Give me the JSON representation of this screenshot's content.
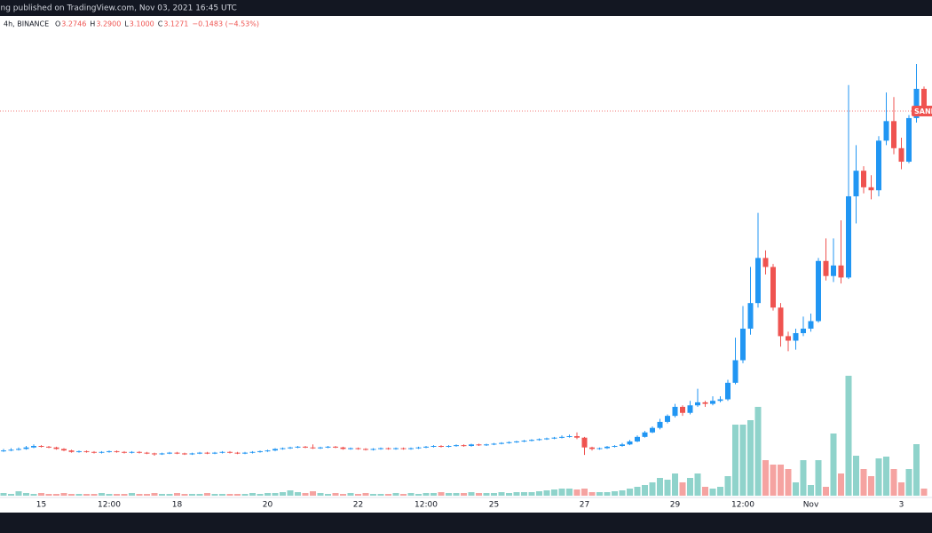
{
  "header": {
    "published": "ing published on TradingView.com, Nov 03, 2021 16:45 UTC",
    "interval": "4h, BINANCE",
    "items": [
      {
        "key": "O",
        "value": "3.2746"
      },
      {
        "key": "H",
        "value": "3.2900"
      },
      {
        "key": "L",
        "value": "3.1000"
      },
      {
        "key": "C",
        "value": "3.1271"
      }
    ],
    "change": "−0.1483 (−4.53%)"
  },
  "chart_data": {
    "type": "candlestick",
    "symbol": "SAND",
    "up_color": "#2196f3",
    "down_color": "#ef5350",
    "volume_up_color": "#8fd3cb",
    "volume_down_color": "#f5a3a1",
    "categories": [
      null,
      null,
      null,
      null,
      null,
      "15",
      null,
      null,
      null,
      null,
      null,
      null,
      null,
      null,
      "12:00",
      null,
      null,
      null,
      null,
      null,
      null,
      null,
      null,
      "18",
      null,
      null,
      null,
      null,
      null,
      null,
      null,
      null,
      null,
      null,
      null,
      "20",
      null,
      null,
      null,
      null,
      null,
      null,
      null,
      null,
      null,
      null,
      null,
      "22",
      null,
      null,
      null,
      null,
      null,
      null,
      null,
      null,
      "12:00",
      null,
      null,
      null,
      null,
      null,
      null,
      null,
      null,
      "25",
      null,
      null,
      null,
      null,
      null,
      null,
      null,
      null,
      null,
      null,
      null,
      "27",
      null,
      null,
      null,
      null,
      null,
      null,
      null,
      null,
      null,
      null,
      null,
      "29",
      null,
      null,
      null,
      null,
      null,
      null,
      null,
      null,
      "12:00",
      null,
      null,
      null,
      null,
      null,
      null,
      null,
      null,
      "Nov",
      null,
      null,
      null,
      null,
      null,
      null,
      null,
      null,
      null,
      null,
      null,
      "3",
      null,
      null,
      null
    ],
    "open": [
      0.865,
      0.87,
      0.875,
      0.88,
      0.89,
      0.9,
      0.895,
      0.89,
      0.88,
      0.87,
      0.86,
      0.865,
      0.86,
      0.855,
      0.86,
      0.865,
      0.86,
      0.855,
      0.86,
      0.855,
      0.85,
      0.845,
      0.85,
      0.855,
      0.85,
      0.845,
      0.85,
      0.855,
      0.85,
      0.855,
      0.86,
      0.855,
      0.85,
      0.855,
      0.86,
      0.865,
      0.87,
      0.88,
      0.885,
      0.89,
      0.895,
      0.89,
      0.885,
      0.89,
      0.895,
      0.89,
      0.88,
      0.885,
      0.88,
      0.875,
      0.88,
      0.885,
      0.88,
      0.885,
      0.88,
      0.885,
      0.89,
      0.895,
      0.9,
      0.895,
      0.9,
      0.905,
      0.9,
      0.91,
      0.905,
      0.91,
      0.915,
      0.92,
      0.925,
      0.93,
      0.935,
      0.94,
      0.945,
      0.95,
      0.955,
      0.96,
      0.965,
      0.955,
      0.89,
      0.88,
      0.885,
      0.895,
      0.9,
      0.91,
      0.93,
      0.96,
      0.99,
      1.02,
      1.06,
      1.1,
      1.16,
      1.12,
      1.17,
      1.19,
      1.18,
      1.2,
      1.21,
      1.32,
      1.47,
      1.68,
      1.85,
      2.15,
      2.09,
      1.82,
      1.63,
      1.6,
      1.65,
      1.68,
      1.73,
      2.13,
      2.03,
      2.1,
      2.02,
      2.56,
      2.73,
      2.62,
      2.6,
      2.93,
      3.06,
      2.88,
      2.79,
      3.08,
      3.2746
    ],
    "high": [
      0.88,
      0.885,
      0.89,
      0.9,
      0.91,
      0.905,
      0.9,
      0.895,
      0.885,
      0.875,
      0.87,
      0.87,
      0.865,
      0.865,
      0.87,
      0.87,
      0.865,
      0.865,
      0.865,
      0.86,
      0.855,
      0.855,
      0.86,
      0.86,
      0.855,
      0.855,
      0.86,
      0.86,
      0.86,
      0.865,
      0.865,
      0.86,
      0.86,
      0.865,
      0.87,
      0.875,
      0.885,
      0.89,
      0.895,
      0.9,
      0.9,
      0.91,
      0.895,
      0.9,
      0.9,
      0.895,
      0.89,
      0.89,
      0.885,
      0.885,
      0.89,
      0.89,
      0.89,
      0.89,
      0.89,
      0.895,
      0.9,
      0.905,
      0.905,
      0.905,
      0.91,
      0.91,
      0.915,
      0.915,
      0.915,
      0.92,
      0.925,
      0.93,
      0.935,
      0.94,
      0.945,
      0.95,
      0.955,
      0.96,
      0.97,
      0.975,
      0.99,
      0.96,
      0.895,
      0.89,
      0.9,
      0.905,
      0.92,
      0.94,
      0.97,
      1.0,
      1.03,
      1.08,
      1.11,
      1.18,
      1.17,
      1.2,
      1.28,
      1.2,
      1.23,
      1.23,
      1.34,
      1.62,
      1.83,
      2.09,
      2.45,
      2.2,
      2.11,
      1.85,
      1.66,
      1.68,
      1.76,
      1.78,
      2.15,
      2.28,
      2.28,
      2.4,
      3.3,
      2.9,
      2.76,
      2.7,
      2.96,
      3.25,
      3.22,
      2.95,
      3.1,
      3.44,
      3.29
    ],
    "low": [
      0.86,
      0.865,
      0.87,
      0.875,
      0.885,
      0.89,
      0.885,
      0.875,
      0.865,
      0.855,
      0.855,
      0.855,
      0.85,
      0.85,
      0.855,
      0.855,
      0.85,
      0.85,
      0.85,
      0.845,
      0.835,
      0.84,
      0.845,
      0.845,
      0.84,
      0.84,
      0.845,
      0.845,
      0.845,
      0.85,
      0.85,
      0.845,
      0.845,
      0.85,
      0.855,
      0.86,
      0.865,
      0.875,
      0.88,
      0.885,
      0.885,
      0.88,
      0.88,
      0.885,
      0.885,
      0.875,
      0.875,
      0.875,
      0.87,
      0.87,
      0.875,
      0.875,
      0.875,
      0.875,
      0.875,
      0.88,
      0.885,
      0.89,
      0.89,
      0.89,
      0.895,
      0.895,
      0.895,
      0.9,
      0.9,
      0.905,
      0.91,
      0.915,
      0.92,
      0.925,
      0.93,
      0.935,
      0.94,
      0.945,
      0.95,
      0.955,
      0.945,
      0.84,
      0.87,
      0.875,
      0.88,
      0.89,
      0.895,
      0.905,
      0.925,
      0.955,
      0.985,
      1.01,
      1.05,
      1.09,
      1.1,
      1.11,
      1.16,
      1.16,
      1.17,
      1.19,
      1.2,
      1.31,
      1.45,
      1.64,
      1.82,
      2.04,
      1.8,
      1.56,
      1.53,
      1.54,
      1.63,
      1.66,
      1.72,
      2.0,
      1.99,
      1.98,
      2.01,
      2.38,
      2.58,
      2.54,
      2.56,
      2.9,
      2.84,
      2.74,
      2.78,
      3.05,
      3.1
    ],
    "close": [
      0.87,
      0.875,
      0.88,
      0.89,
      0.9,
      0.895,
      0.89,
      0.88,
      0.87,
      0.86,
      0.865,
      0.86,
      0.855,
      0.86,
      0.865,
      0.86,
      0.855,
      0.86,
      0.855,
      0.85,
      0.845,
      0.85,
      0.855,
      0.85,
      0.845,
      0.85,
      0.855,
      0.85,
      0.855,
      0.86,
      0.855,
      0.85,
      0.855,
      0.86,
      0.865,
      0.87,
      0.88,
      0.885,
      0.89,
      0.895,
      0.89,
      0.885,
      0.89,
      0.895,
      0.89,
      0.88,
      0.885,
      0.88,
      0.875,
      0.88,
      0.885,
      0.88,
      0.885,
      0.88,
      0.885,
      0.89,
      0.895,
      0.9,
      0.895,
      0.9,
      0.905,
      0.9,
      0.91,
      0.905,
      0.91,
      0.915,
      0.92,
      0.925,
      0.93,
      0.935,
      0.94,
      0.945,
      0.95,
      0.955,
      0.96,
      0.965,
      0.955,
      0.89,
      0.88,
      0.885,
      0.895,
      0.9,
      0.91,
      0.93,
      0.96,
      0.99,
      1.02,
      1.06,
      1.1,
      1.16,
      1.12,
      1.17,
      1.19,
      1.18,
      1.2,
      1.21,
      1.32,
      1.47,
      1.68,
      1.85,
      2.15,
      2.09,
      1.82,
      1.63,
      1.6,
      1.65,
      1.68,
      1.73,
      2.13,
      2.03,
      2.1,
      2.02,
      2.56,
      2.73,
      2.62,
      2.6,
      2.93,
      3.06,
      2.88,
      2.79,
      3.08,
      3.2746,
      3.1271
    ],
    "volume": [
      3,
      2,
      5,
      3,
      2,
      3,
      2,
      2,
      3,
      2,
      2,
      2,
      2,
      3,
      2,
      2,
      2,
      3,
      2,
      2,
      3,
      2,
      2,
      3,
      2,
      2,
      2,
      3,
      2,
      2,
      2,
      2,
      2,
      3,
      2,
      3,
      3,
      4,
      6,
      4,
      3,
      5,
      3,
      2,
      3,
      2,
      3,
      2,
      3,
      2,
      2,
      2,
      3,
      2,
      3,
      2,
      3,
      3,
      4,
      3,
      3,
      3,
      4,
      3,
      3,
      3,
      4,
      3,
      4,
      4,
      4,
      5,
      6,
      7,
      8,
      8,
      7,
      8,
      4,
      4,
      4,
      5,
      6,
      8,
      10,
      12,
      15,
      20,
      18,
      25,
      15,
      20,
      25,
      10,
      8,
      10,
      22,
      80,
      80,
      85,
      100,
      40,
      35,
      35,
      30,
      15,
      40,
      12,
      40,
      10,
      70,
      25,
      135,
      45,
      30,
      22,
      42,
      44,
      30,
      15,
      30,
      58,
      8
    ]
  }
}
